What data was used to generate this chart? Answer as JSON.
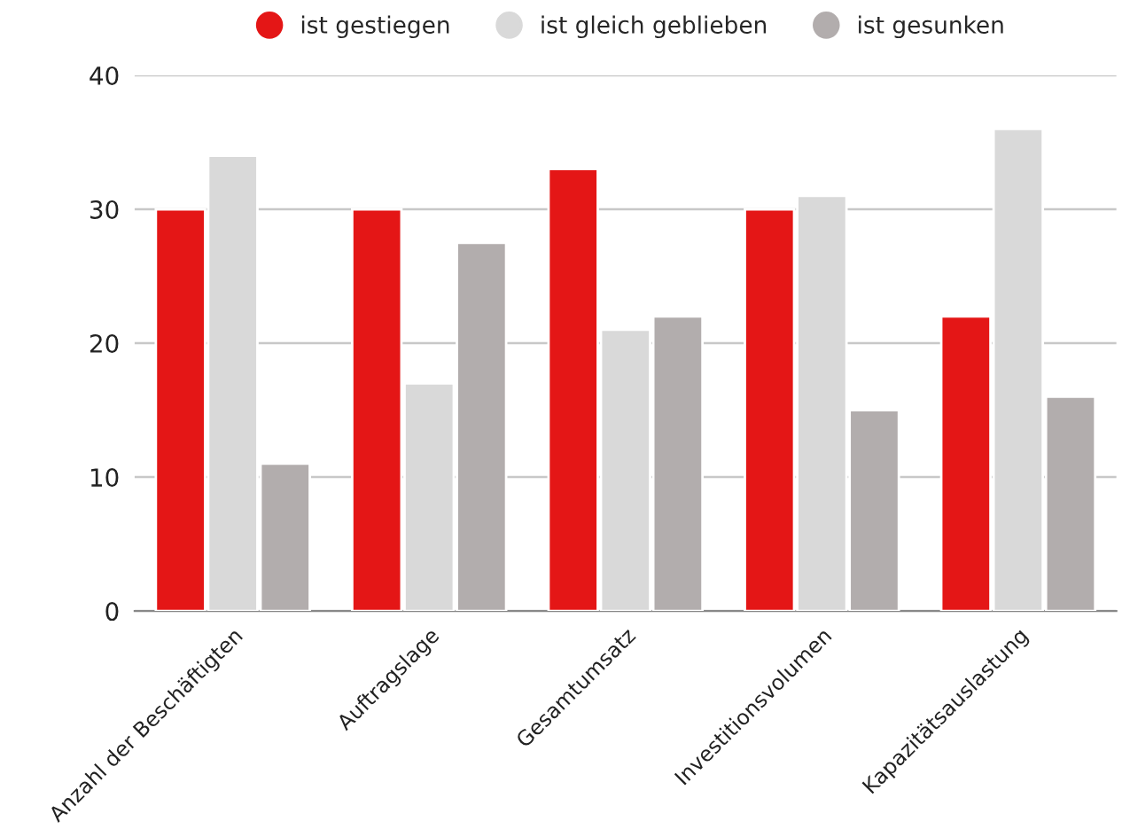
{
  "chart_data": {
    "type": "bar",
    "categories": [
      "Anzahl der Beschäftigten",
      "Auftragslage",
      "Gesamtumsatz",
      "Investitionsvolumen",
      "Kapazitätsauslastung"
    ],
    "series": [
      {
        "name": "ist gestiegen",
        "color": "#e41616",
        "values": [
          30,
          30,
          33,
          30,
          22
        ]
      },
      {
        "name": "ist gleich geblieben",
        "color": "#d9d9d9",
        "values": [
          34,
          17,
          21,
          31,
          36
        ]
      },
      {
        "name": "ist gesunken",
        "color": "#b2adad",
        "values": [
          11,
          27.5,
          22,
          15,
          16
        ]
      }
    ],
    "ylim": [
      0,
      40
    ],
    "yticks": [
      0,
      10,
      20,
      30,
      40
    ],
    "grid": "y",
    "legend": "top"
  }
}
